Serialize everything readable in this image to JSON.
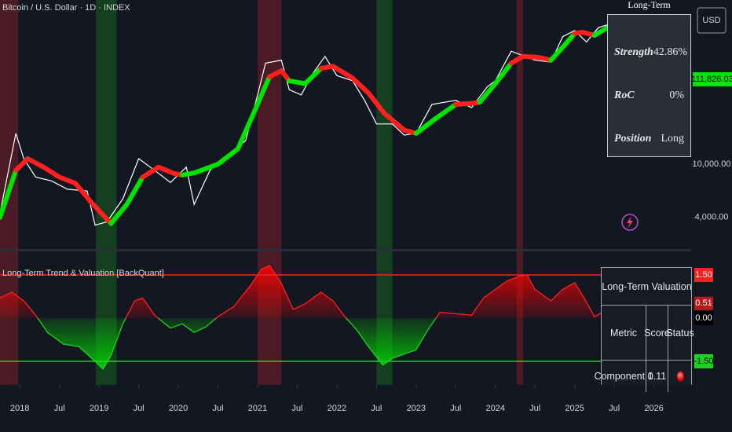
{
  "chart_data": [
    {
      "type": "line",
      "title": "Bitcoin / U.S. Dollar · 1D · INDEX",
      "currency": "USD",
      "log_scale": true,
      "xlim": [
        2017.75,
        2026.47
      ],
      "xticks": [
        {
          "value": 2018,
          "label": "2018"
        },
        {
          "value": 2018.5,
          "label": "Jul"
        },
        {
          "value": 2019,
          "label": "2019"
        },
        {
          "value": 2019.5,
          "label": "Jul"
        },
        {
          "value": 2020,
          "label": "2020"
        },
        {
          "value": 2020.5,
          "label": "Jul"
        },
        {
          "value": 2021,
          "label": "2021"
        },
        {
          "value": 2021.5,
          "label": "Jul"
        },
        {
          "value": 2022,
          "label": "2022"
        },
        {
          "value": 2022.5,
          "label": "Jul"
        },
        {
          "value": 2023,
          "label": "2023"
        },
        {
          "value": 2023.5,
          "label": "Jul"
        },
        {
          "value": 2024,
          "label": "2024"
        },
        {
          "value": 2024.5,
          "label": "Jul"
        },
        {
          "value": 2025,
          "label": "2025"
        },
        {
          "value": 2025.5,
          "label": "Jul"
        },
        {
          "value": 2026,
          "label": "2026"
        }
      ],
      "ylim": [
        2290,
        169000
      ],
      "yticks": [
        {
          "value": 10000,
          "label": "10,000.00"
        },
        {
          "value": 4000,
          "label": "4,000.00"
        }
      ],
      "highlights": [
        {
          "start": 2017.75,
          "end": 2017.98,
          "color": "#4a1b24"
        },
        {
          "start": 2018.96,
          "end": 2019.22,
          "color": "#14401f"
        },
        {
          "start": 2021.0,
          "end": 2021.3,
          "color": "#4a1b24"
        },
        {
          "start": 2022.5,
          "end": 2022.7,
          "color": "#14401f"
        },
        {
          "start": 2024.27,
          "end": 2024.35,
          "color": "#4a1b24"
        }
      ],
      "series": [
        {
          "color": "#ffffff",
          "last_label": "111,826.03",
          "last_color": "#00e600",
          "x": [
            2017.75,
            2017.95,
            2018.05,
            2018.2,
            2018.4,
            2018.6,
            2018.85,
            2018.95,
            2019.1,
            2019.3,
            2019.5,
            2019.7,
            2019.9,
            2020.1,
            2020.2,
            2020.4,
            2020.6,
            2020.85,
            2021.0,
            2021.1,
            2021.3,
            2021.4,
            2021.55,
            2021.7,
            2021.85,
            2022.0,
            2022.2,
            2022.35,
            2022.5,
            2022.7,
            2022.85,
            2023.0,
            2023.2,
            2023.5,
            2023.7,
            2023.9,
            2024.0,
            2024.2,
            2024.5,
            2024.7,
            2024.85,
            2025.0,
            2025.15,
            2025.3,
            2025.45
          ],
          "values": [
            4300,
            17000,
            11000,
            8000,
            7500,
            6500,
            6300,
            3500,
            3700,
            5500,
            11000,
            9000,
            7300,
            9500,
            5000,
            9000,
            11500,
            15000,
            33000,
            57000,
            60000,
            36000,
            33000,
            48000,
            64000,
            46000,
            42000,
            30000,
            20000,
            20000,
            16500,
            17000,
            28000,
            30000,
            26500,
            38000,
            42000,
            70000,
            60000,
            58000,
            90000,
            100000,
            82000,
            105000,
            111826.03
          ]
        },
        {
          "x": [
            2017.75,
            2017.95,
            2018.1,
            2018.3,
            2018.5,
            2018.7,
            2018.9,
            2019.15,
            2019.35,
            2019.55,
            2019.75,
            2019.95,
            2020.05,
            2020.2,
            2020.5,
            2020.75,
            2020.95,
            2021.15,
            2021.3,
            2021.4,
            2021.6,
            2021.8,
            2021.95,
            2022.2,
            2022.4,
            2022.6,
            2022.85,
            2023.0,
            2023.25,
            2023.5,
            2023.7,
            2023.8,
            2024.0,
            2024.2,
            2024.35,
            2024.55,
            2024.7,
            2024.85,
            2025.0,
            2025.1,
            2025.25,
            2025.45
          ],
          "values": [
            4000,
            9000,
            11000,
            9500,
            8000,
            7200,
            5200,
            3600,
            5000,
            8000,
            9500,
            8500,
            8300,
            8600,
            10000,
            13000,
            24000,
            45000,
            50000,
            42000,
            40000,
            52000,
            54000,
            44000,
            34000,
            24000,
            18000,
            17000,
            22000,
            28000,
            28500,
            29000,
            40000,
            57000,
            64000,
            63000,
            60000,
            75000,
            95000,
            97000,
            92000,
            108000
          ],
          "colors": [
            "#00e600",
            "#00e600",
            "#ff1f1f",
            "#ff1f1f",
            "#ff1f1f",
            "#ff1f1f",
            "#ff1f1f",
            "#ff1f1f",
            "#00e600",
            "#00e600",
            "#ff1f1f",
            "#ff1f1f",
            "#ff1f1f",
            "#00e600",
            "#00e600",
            "#00e600",
            "#00e600",
            "#00e600",
            "#ff1f1f",
            "#ff1f1f",
            "#00e600",
            "#00e600",
            "#ff1f1f",
            "#ff1f1f",
            "#ff1f1f",
            "#ff1f1f",
            "#ff1f1f",
            "#ff1f1f",
            "#00e600",
            "#00e600",
            "#ff1f1f",
            "#ff1f1f",
            "#00e600",
            "#00e600",
            "#ff1f1f",
            "#ff1f1f",
            "#ff1f1f",
            "#00e600",
            "#00e600",
            "#ff1f1f",
            "#ff1f1f",
            "#00e600"
          ]
        }
      ]
    },
    {
      "type": "area",
      "title": "Long-Term Trend & Valuation [BackQuant]",
      "xlim": [
        2017.75,
        2026.47
      ],
      "ylim": [
        -2.32,
        2.32
      ],
      "yticks": [
        {
          "value": 1.5,
          "label": "1.50"
        },
        {
          "value": 0,
          "label": "0.00"
        },
        {
          "value": -1.5,
          "label": "-1.50"
        }
      ],
      "ytick_colors": [
        "#ff1f1f",
        null,
        "#1fd21f"
      ],
      "colors": {
        "above": "#ff1f1f",
        "below": "#1fd21f"
      },
      "x": [
        2017.75,
        2017.9,
        2018.05,
        2018.2,
        2018.35,
        2018.55,
        2018.75,
        2018.95,
        2019.05,
        2019.15,
        2019.3,
        2019.45,
        2019.55,
        2019.7,
        2019.9,
        2020.05,
        2020.2,
        2020.35,
        2020.5,
        2020.7,
        2020.9,
        2021.05,
        2021.15,
        2021.3,
        2021.45,
        2021.6,
        2021.8,
        2021.95,
        2022.1,
        2022.25,
        2022.4,
        2022.58,
        2022.7,
        2022.85,
        2023.0,
        2023.15,
        2023.3,
        2023.5,
        2023.7,
        2023.85,
        2024.0,
        2024.15,
        2024.3,
        2024.4,
        2024.5,
        2024.7,
        2024.85,
        2025.0,
        2025.12,
        2025.25,
        2025.35,
        2025.45
      ],
      "values": [
        0.7,
        0.9,
        0.6,
        0.1,
        -0.5,
        -0.9,
        -1.0,
        -1.5,
        -1.77,
        -1.3,
        -0.2,
        0.6,
        0.7,
        0.1,
        -0.35,
        -0.2,
        -0.5,
        -0.3,
        0.05,
        0.4,
        1.1,
        1.7,
        1.83,
        1.2,
        0.3,
        0.5,
        0.9,
        0.6,
        0.05,
        -0.4,
        -1.0,
        -1.63,
        -1.4,
        -1.25,
        -1.1,
        -0.4,
        0.2,
        0.15,
        0.1,
        0.7,
        1.0,
        1.3,
        1.45,
        1.5,
        1.0,
        0.6,
        1.0,
        1.23,
        0.7,
        0.05,
        0.2,
        0.51
      ]
    }
  ],
  "tables": {
    "trend": {
      "title": "Long-Term",
      "rows": [
        [
          "Strength",
          "42.86%"
        ],
        [
          "RoC",
          "0%"
        ],
        [
          "Position",
          "Long"
        ]
      ]
    },
    "valuation": {
      "title": "Long-Term Valuation",
      "header": [
        "Metric",
        "Score",
        "Status"
      ],
      "rows": [
        [
          "Component 1",
          "0.11"
        ]
      ]
    }
  }
}
